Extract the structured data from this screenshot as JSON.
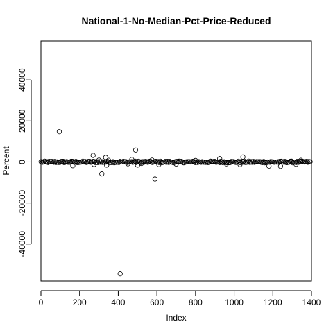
{
  "chart_data": {
    "type": "scatter",
    "title": "National-1-No-Median-Pct-Price-Reduced",
    "xlabel": "Index",
    "ylabel": "Percent",
    "xlim": [
      0,
      1400
    ],
    "ylim": [
      -58000,
      59000
    ],
    "x_ticks": [
      0,
      200,
      400,
      600,
      800,
      1000,
      1200,
      1400
    ],
    "y_ticks": [
      -40000,
      -20000,
      0,
      20000,
      40000
    ],
    "grid": false,
    "legend": "none",
    "dense_band": {
      "x_start": 1,
      "x_end": 1396,
      "y_min": -400,
      "y_max": 400
    },
    "outliers": [
      {
        "x": 95,
        "y": 14800
      },
      {
        "x": 165,
        "y": -1800
      },
      {
        "x": 270,
        "y": 3200
      },
      {
        "x": 275,
        "y": -1200
      },
      {
        "x": 300,
        "y": 900
      },
      {
        "x": 315,
        "y": -5800
      },
      {
        "x": 335,
        "y": 2200
      },
      {
        "x": 340,
        "y": -1500
      },
      {
        "x": 350,
        "y": 800
      },
      {
        "x": 410,
        "y": -54500
      },
      {
        "x": 450,
        "y": -900
      },
      {
        "x": 470,
        "y": 1200
      },
      {
        "x": 490,
        "y": 5800
      },
      {
        "x": 500,
        "y": -1500
      },
      {
        "x": 520,
        "y": -700
      },
      {
        "x": 575,
        "y": 900
      },
      {
        "x": 590,
        "y": -8300
      },
      {
        "x": 610,
        "y": -1200
      },
      {
        "x": 700,
        "y": -1000
      },
      {
        "x": 800,
        "y": 700
      },
      {
        "x": 925,
        "y": 1600
      },
      {
        "x": 960,
        "y": -900
      },
      {
        "x": 1030,
        "y": -1200
      },
      {
        "x": 1045,
        "y": 2400
      },
      {
        "x": 1180,
        "y": -2000
      },
      {
        "x": 1240,
        "y": -2100
      },
      {
        "x": 1320,
        "y": -1100
      },
      {
        "x": 1345,
        "y": 800
      }
    ]
  }
}
